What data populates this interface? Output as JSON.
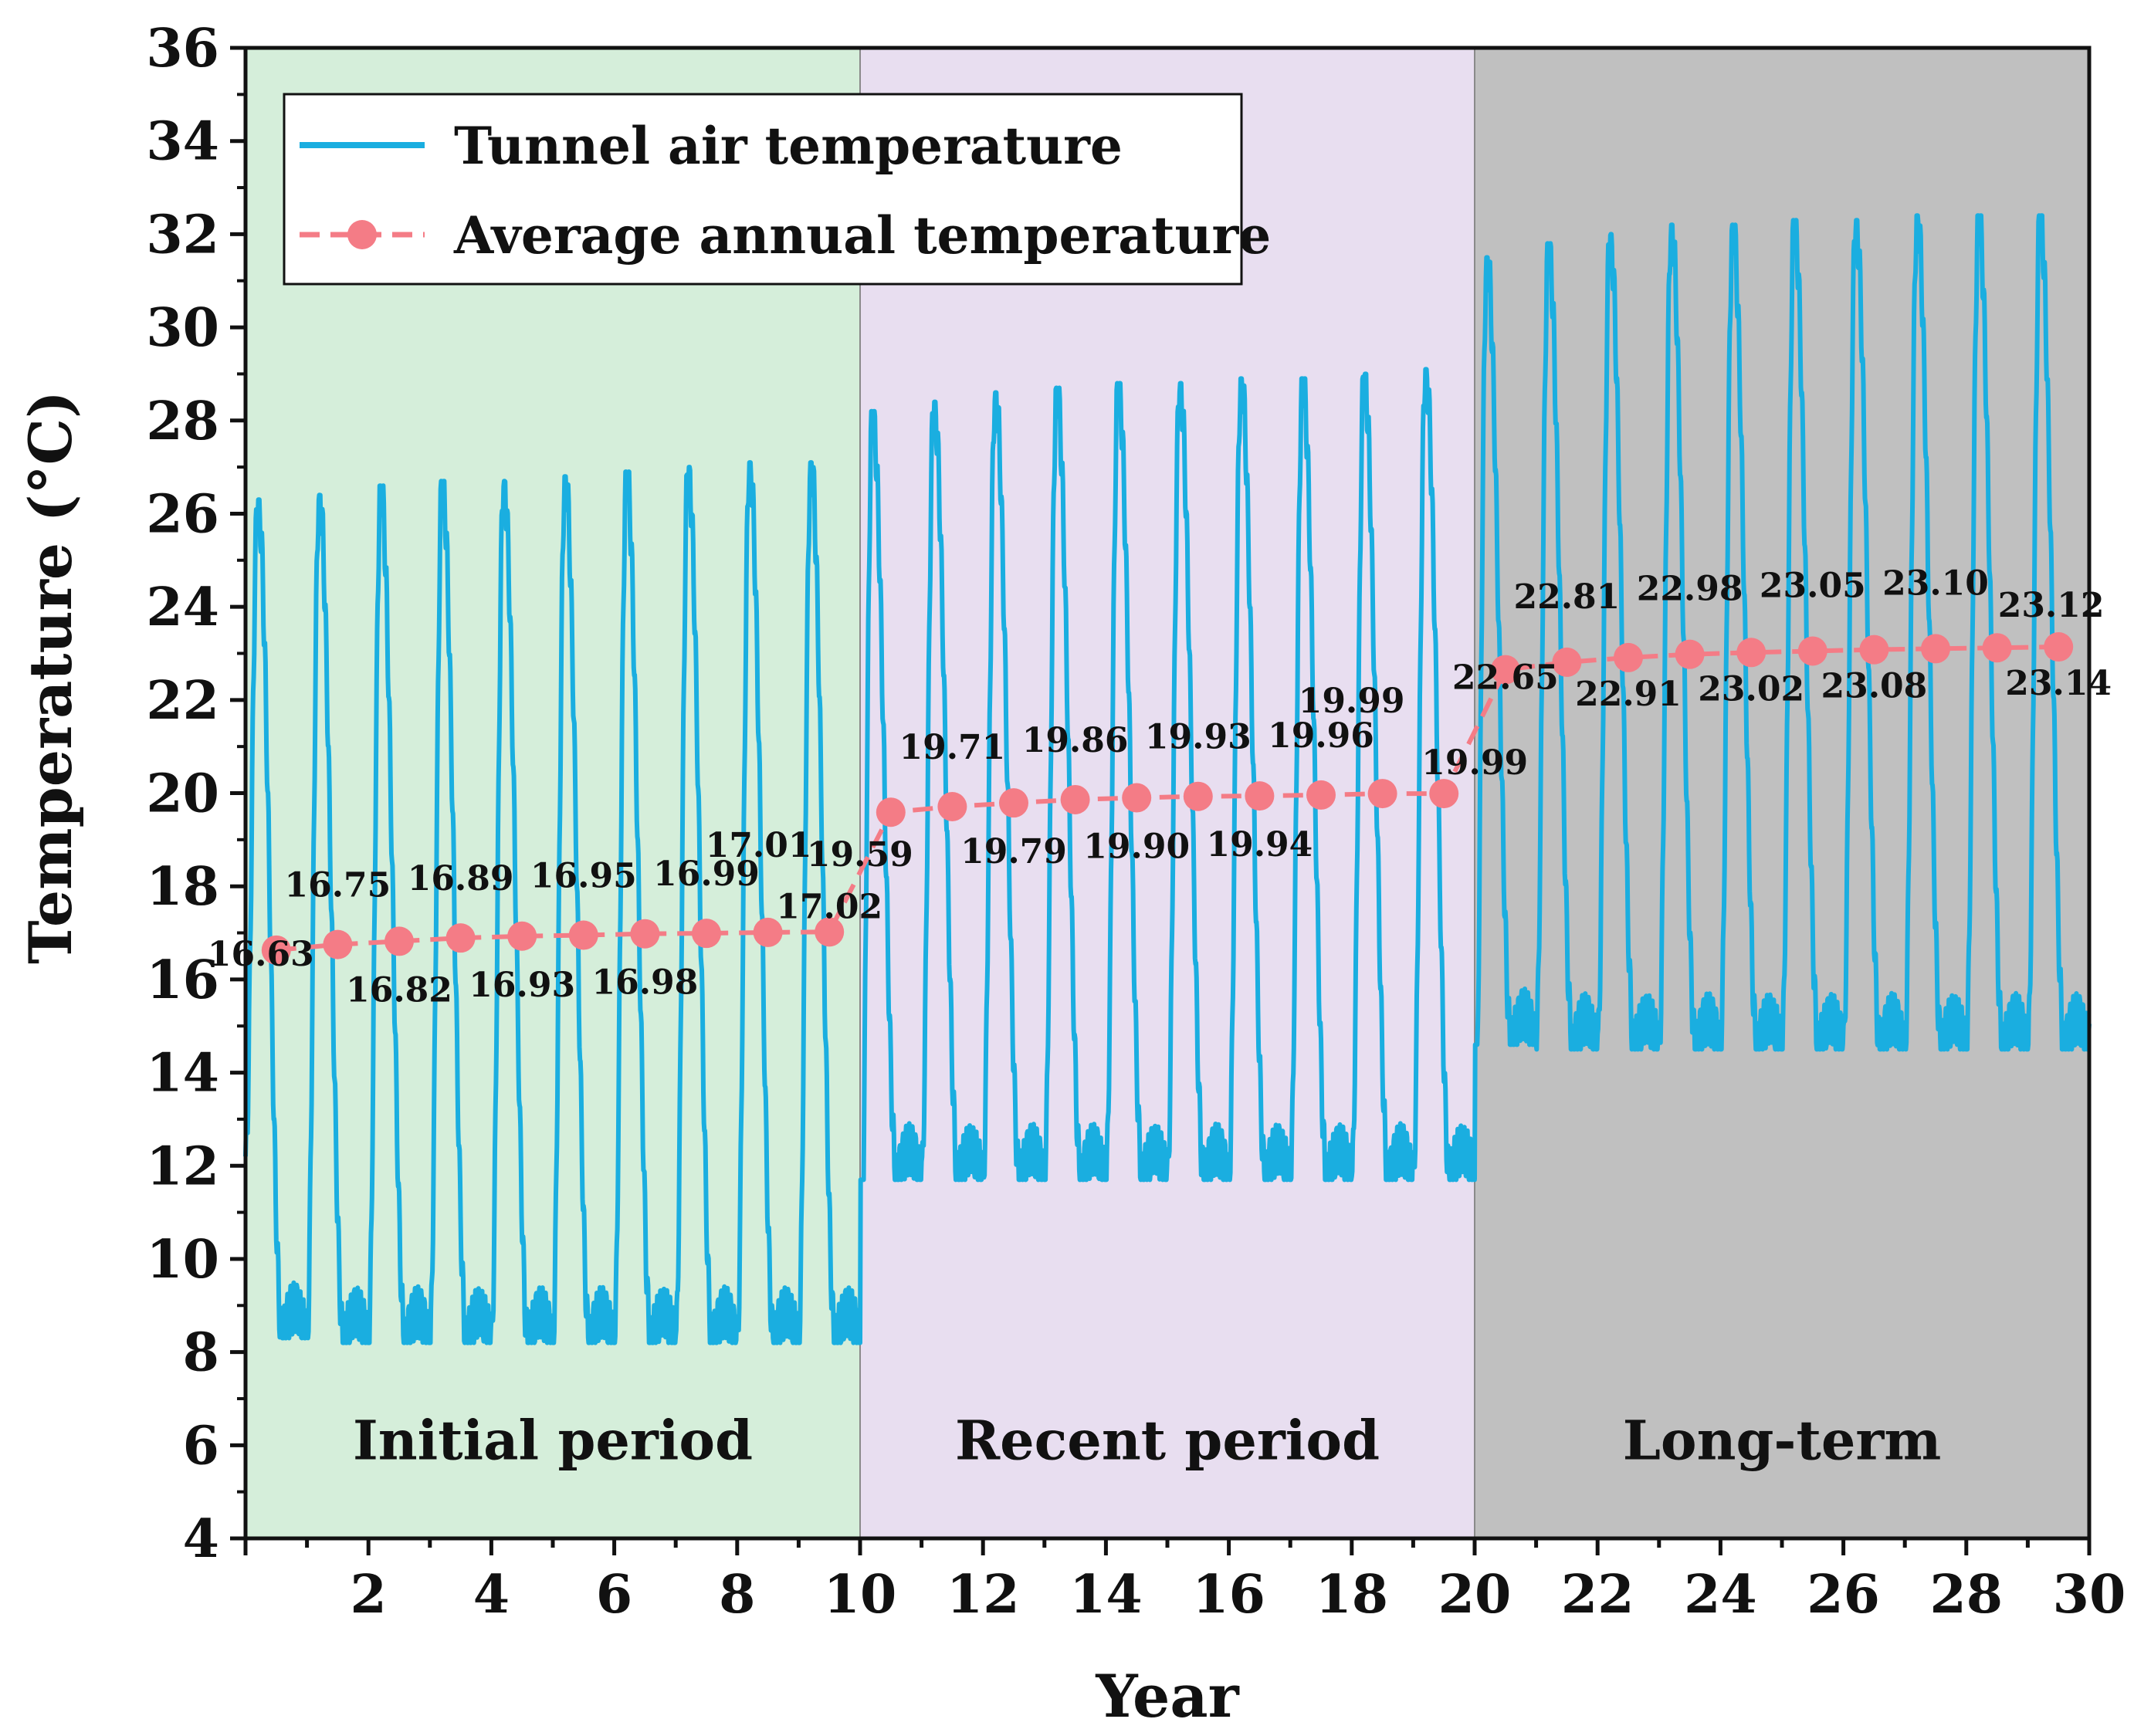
{
  "chart_data": {
    "type": "line",
    "xlabel": "Year",
    "ylabel": "Temperature (°C)",
    "xlim": [
      0,
      30
    ],
    "ylim": [
      4,
      36
    ],
    "x_ticks": [
      2,
      4,
      6,
      8,
      10,
      12,
      14,
      16,
      18,
      20,
      22,
      24,
      26,
      28,
      30
    ],
    "y_ticks": [
      4,
      6,
      8,
      10,
      12,
      14,
      16,
      18,
      20,
      22,
      24,
      26,
      28,
      30,
      32,
      34,
      36
    ],
    "legend_position": "top-left",
    "grid": false,
    "periods": [
      {
        "label": "Initial period",
        "x_start": 0,
        "x_end": 10,
        "color": "#d5eeda"
      },
      {
        "label": "Recent period",
        "x_start": 10,
        "x_end": 20,
        "color": "#e8def0"
      },
      {
        "label": "Long-term",
        "x_start": 20,
        "x_end": 30,
        "color": "#c0c0c0"
      }
    ],
    "series": [
      {
        "name": "Tunnel air temperature",
        "color": "#1aaee0",
        "style": "line",
        "cycles": [
          {
            "year": 1,
            "max": 26.3,
            "min": 8.3
          },
          {
            "year": 2,
            "max": 26.4,
            "min": 8.2
          },
          {
            "year": 3,
            "max": 26.6,
            "min": 8.2
          },
          {
            "year": 4,
            "max": 26.7,
            "min": 8.2
          },
          {
            "year": 5,
            "max": 26.7,
            "min": 8.2
          },
          {
            "year": 6,
            "max": 26.8,
            "min": 8.2
          },
          {
            "year": 7,
            "max": 26.9,
            "min": 8.2
          },
          {
            "year": 8,
            "max": 27.0,
            "min": 8.2
          },
          {
            "year": 9,
            "max": 27.1,
            "min": 8.2
          },
          {
            "year": 10,
            "max": 27.1,
            "min": 8.2
          },
          {
            "year": 11,
            "max": 28.2,
            "min": 11.7
          },
          {
            "year": 12,
            "max": 28.4,
            "min": 11.7
          },
          {
            "year": 13,
            "max": 28.6,
            "min": 11.7
          },
          {
            "year": 14,
            "max": 28.7,
            "min": 11.7
          },
          {
            "year": 15,
            "max": 28.8,
            "min": 11.7
          },
          {
            "year": 16,
            "max": 28.8,
            "min": 11.7
          },
          {
            "year": 17,
            "max": 28.9,
            "min": 11.7
          },
          {
            "year": 18,
            "max": 28.9,
            "min": 11.7
          },
          {
            "year": 19,
            "max": 29.0,
            "min": 11.7
          },
          {
            "year": 20,
            "max": 29.1,
            "min": 11.7
          },
          {
            "year": 21,
            "max": 31.5,
            "min": 14.6
          },
          {
            "year": 22,
            "max": 31.8,
            "min": 14.5
          },
          {
            "year": 23,
            "max": 32.0,
            "min": 14.5
          },
          {
            "year": 24,
            "max": 32.2,
            "min": 14.5
          },
          {
            "year": 25,
            "max": 32.2,
            "min": 14.5
          },
          {
            "year": 26,
            "max": 32.3,
            "min": 14.5
          },
          {
            "year": 27,
            "max": 32.3,
            "min": 14.5
          },
          {
            "year": 28,
            "max": 32.4,
            "min": 14.5
          },
          {
            "year": 29,
            "max": 32.4,
            "min": 14.5
          },
          {
            "year": 30,
            "max": 32.4,
            "min": 14.5
          }
        ]
      },
      {
        "name": "Average annual temperature",
        "color": "#f47c86",
        "style": "dashed-line-markers",
        "x": [
          0.5,
          1.5,
          2.5,
          3.5,
          4.5,
          5.5,
          6.5,
          7.5,
          8.5,
          9.5,
          10.5,
          11.5,
          12.5,
          13.5,
          14.5,
          15.5,
          16.5,
          17.5,
          18.5,
          19.5,
          20.5,
          21.5,
          22.5,
          23.5,
          24.5,
          25.5,
          26.5,
          27.5,
          28.5,
          29.5
        ],
        "values": [
          16.63,
          16.75,
          16.82,
          16.89,
          16.93,
          16.95,
          16.98,
          16.99,
          17.01,
          17.02,
          19.59,
          19.71,
          19.79,
          19.86,
          19.9,
          19.93,
          19.94,
          19.96,
          19.99,
          19.99,
          22.65,
          22.81,
          22.91,
          22.98,
          23.02,
          23.05,
          23.08,
          23.1,
          23.12,
          23.14
        ],
        "labels": [
          "16.63",
          "16.75",
          "16.82",
          "16.89",
          "16.93",
          "16.95",
          "16.98",
          "16.99",
          "17.01",
          "17.02",
          "19.59",
          "19.71",
          "19.79",
          "19.86",
          "19.90",
          "19.93",
          "19.94",
          "19.96",
          "19.99",
          "19.99",
          "22.65",
          "22.81",
          "22.91",
          "22.98",
          "23.02",
          "23.05",
          "23.08",
          "23.10",
          "23.12",
          "23.14"
        ]
      }
    ]
  }
}
